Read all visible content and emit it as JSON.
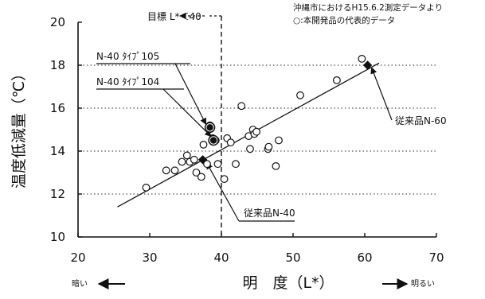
{
  "chart_data": {
    "type": "scatter",
    "xlabel": "明　度（L*）",
    "ylabel": "温度低減量（℃）",
    "xlim": [
      20,
      70
    ],
    "ylim": [
      10,
      20
    ],
    "x_ticks": [
      "20",
      "30",
      "40",
      "50",
      "60",
      "70"
    ],
    "y_ticks": [
      "10",
      "12",
      "14",
      "16",
      "18",
      "20"
    ],
    "grid": "horizontal-dotted",
    "notes": [
      "沖縄市におけるH15.6.2測定データより",
      "○:本開発品の代表的データ"
    ],
    "target_label": "目標 L*＜40",
    "target_x": 40,
    "direction_labels": {
      "left": "暗い",
      "right": "明るい"
    },
    "trendline": {
      "x": [
        25.5,
        62
      ],
      "y": [
        11.4,
        18.1
      ]
    },
    "series": [
      {
        "marker": "open-circle",
        "points": [
          {
            "x": 29.5,
            "y": 12.3
          },
          {
            "x": 32.3,
            "y": 13.1
          },
          {
            "x": 33.5,
            "y": 13.1
          },
          {
            "x": 34.5,
            "y": 13.5
          },
          {
            "x": 35.2,
            "y": 13.8
          },
          {
            "x": 35.6,
            "y": 13.5
          },
          {
            "x": 36.2,
            "y": 13.6
          },
          {
            "x": 36.5,
            "y": 13.0
          },
          {
            "x": 37.2,
            "y": 12.8
          },
          {
            "x": 37.5,
            "y": 14.3
          },
          {
            "x": 38.0,
            "y": 13.4
          },
          {
            "x": 38.4,
            "y": 15.2
          },
          {
            "x": 38.8,
            "y": 14.6
          },
          {
            "x": 39.2,
            "y": 14.5
          },
          {
            "x": 39.5,
            "y": 13.4
          },
          {
            "x": 40.4,
            "y": 12.7
          },
          {
            "x": 40.8,
            "y": 14.6
          },
          {
            "x": 41.3,
            "y": 14.4
          },
          {
            "x": 42.0,
            "y": 13.4
          },
          {
            "x": 42.8,
            "y": 16.1
          },
          {
            "x": 43.8,
            "y": 14.7
          },
          {
            "x": 44.0,
            "y": 14.1
          },
          {
            "x": 44.4,
            "y": 15.0
          },
          {
            "x": 44.6,
            "y": 14.8
          },
          {
            "x": 44.9,
            "y": 14.9
          },
          {
            "x": 46.5,
            "y": 14.1
          },
          {
            "x": 46.6,
            "y": 14.2
          },
          {
            "x": 47.6,
            "y": 13.3
          },
          {
            "x": 48.0,
            "y": 14.5
          },
          {
            "x": 51.0,
            "y": 16.6
          },
          {
            "x": 56.1,
            "y": 17.3
          },
          {
            "x": 59.6,
            "y": 18.3
          }
        ]
      },
      {
        "marker": "filled-circle",
        "points": [
          {
            "x": 38.4,
            "y": 15.1
          },
          {
            "x": 38.9,
            "y": 14.5
          }
        ]
      },
      {
        "marker": "filled-diamond",
        "points": [
          {
            "x": 37.4,
            "y": 13.6
          },
          {
            "x": 60.4,
            "y": 18.0
          }
        ]
      }
    ],
    "annotations": [
      {
        "text": "N-40 ﾀｲﾌﾟ105",
        "x": 38.4,
        "y": 15.1
      },
      {
        "text": "N-40 ﾀｲﾌﾟ104",
        "x": 38.9,
        "y": 14.5
      },
      {
        "text": "従来品N-40",
        "x": 37.4,
        "y": 13.6
      },
      {
        "text": "従来品N-60",
        "x": 60.4,
        "y": 18.0
      }
    ]
  }
}
